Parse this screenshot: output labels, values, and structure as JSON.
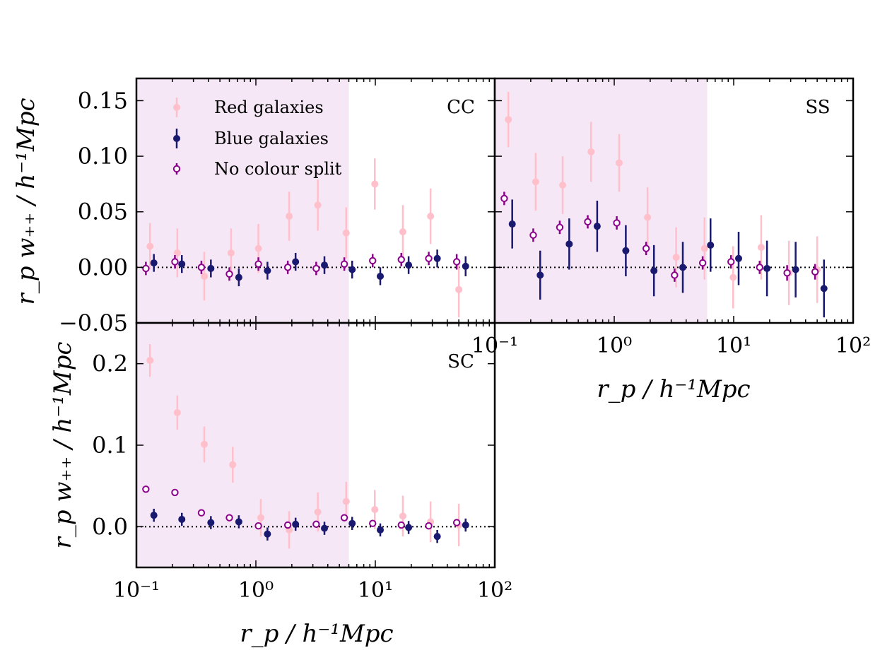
{
  "legend": {
    "red_label": "Red galaxies",
    "blue_label": "Blue galaxies",
    "all_label": "No colour split"
  },
  "axes": {
    "x_tick_labels": [
      "10⁻¹",
      "10⁰",
      "10¹",
      "10²"
    ],
    "x_tick_values": [
      0.1,
      1,
      10,
      100
    ],
    "xlabel": "r_p / h⁻¹Mpc",
    "ylabel": "r_p w₊₊ / h⁻¹Mpc"
  },
  "colors": {
    "red": "#ffc0cb",
    "blue": "#191970",
    "all": "#8b008b",
    "shade": "#f6e7f6"
  },
  "chart_data": [
    {
      "type": "scatter",
      "panel": "CC",
      "title": "CC",
      "xscale": "log",
      "xlim": [
        0.1,
        100
      ],
      "ylim": [
        -0.05,
        0.17
      ],
      "yticks": [
        -0.05,
        0.0,
        0.05,
        0.1,
        0.15
      ],
      "ytick_labels": [
        "−0.05",
        "0.00",
        "0.05",
        "0.10",
        "0.15"
      ],
      "shaded_region": [
        0.1,
        6
      ],
      "reference_line": 0,
      "series": [
        {
          "name": "Red galaxies",
          "color": "#ffc0cb",
          "marker": "filled",
          "x": [
            0.13,
            0.22,
            0.37,
            0.62,
            1.05,
            1.9,
            3.3,
            5.7,
            9.9,
            17,
            29,
            50
          ],
          "y": [
            0.019,
            0.013,
            -0.008,
            0.013,
            0.017,
            0.046,
            0.056,
            0.031,
            0.075,
            0.032,
            0.046,
            -0.02
          ],
          "err": [
            0.021,
            0.022,
            0.022,
            0.022,
            0.022,
            0.022,
            0.023,
            0.023,
            0.023,
            0.024,
            0.025,
            0.025
          ]
        },
        {
          "name": "Blue galaxies",
          "color": "#191970",
          "marker": "filled",
          "x": [
            0.14,
            0.24,
            0.42,
            0.72,
            1.25,
            2.15,
            3.75,
            6.4,
            11,
            19,
            33,
            57
          ],
          "y": [
            0.004,
            0.003,
            -0.001,
            -0.009,
            -0.003,
            0.005,
            0.002,
            -0.002,
            -0.008,
            0.002,
            0.008,
            0.001
          ],
          "err": [
            0.008,
            0.008,
            0.008,
            0.008,
            0.008,
            0.008,
            0.008,
            0.008,
            0.008,
            0.008,
            0.008,
            0.009
          ]
        },
        {
          "name": "No colour split",
          "color": "#8b008b",
          "marker": "open",
          "x": [
            0.12,
            0.21,
            0.35,
            0.6,
            1.05,
            1.85,
            3.2,
            5.5,
            9.5,
            16.5,
            28,
            48
          ],
          "y": [
            -0.001,
            0.005,
            0.0,
            -0.006,
            0.003,
            0.0,
            -0.001,
            0.003,
            0.006,
            0.007,
            0.008,
            0.005
          ],
          "err": [
            0.006,
            0.006,
            0.006,
            0.006,
            0.006,
            0.006,
            0.006,
            0.006,
            0.006,
            0.006,
            0.006,
            0.007
          ]
        }
      ]
    },
    {
      "type": "scatter",
      "panel": "SS",
      "title": "SS",
      "xscale": "log",
      "xlim": [
        0.1,
        100
      ],
      "ylim": [
        -0.05,
        0.17
      ],
      "yticks": [
        -0.05,
        0.0,
        0.05,
        0.1,
        0.15
      ],
      "ytick_labels": [],
      "shaded_region": [
        0.1,
        6
      ],
      "reference_line": 0,
      "series": [
        {
          "name": "Red galaxies",
          "color": "#ffc0cb",
          "marker": "filled",
          "x": [
            0.13,
            0.22,
            0.37,
            0.64,
            1.1,
            1.9,
            3.3,
            5.7,
            9.9,
            17,
            29,
            50
          ],
          "y": [
            0.133,
            0.077,
            0.074,
            0.104,
            0.094,
            0.045,
            0.009,
            0.017,
            -0.009,
            0.018,
            -0.005,
            -0.002
          ],
          "err": [
            0.025,
            0.026,
            0.026,
            0.027,
            0.026,
            0.027,
            0.027,
            0.028,
            0.028,
            0.029,
            0.029,
            0.03
          ]
        },
        {
          "name": "Blue galaxies",
          "color": "#191970",
          "marker": "filled",
          "x": [
            0.14,
            0.24,
            0.42,
            0.72,
            1.25,
            2.15,
            3.75,
            6.4,
            11,
            19,
            33,
            57
          ],
          "y": [
            0.039,
            -0.007,
            0.021,
            0.037,
            0.015,
            -0.003,
            0.0,
            0.02,
            0.008,
            -0.001,
            -0.002,
            -0.019
          ],
          "err": [
            0.022,
            0.022,
            0.023,
            0.023,
            0.023,
            0.023,
            0.023,
            0.024,
            0.024,
            0.025,
            0.025,
            0.026
          ]
        },
        {
          "name": "No colour split",
          "color": "#8b008b",
          "marker": "open",
          "x": [
            0.12,
            0.21,
            0.35,
            0.6,
            1.05,
            1.85,
            3.2,
            5.5,
            9.5,
            16.5,
            28,
            48
          ],
          "y": [
            0.062,
            0.029,
            0.036,
            0.041,
            0.04,
            0.017,
            -0.007,
            0.004,
            0.005,
            0.0,
            -0.005,
            -0.004
          ],
          "err": [
            0.006,
            0.006,
            0.006,
            0.006,
            0.006,
            0.006,
            0.006,
            0.006,
            0.006,
            0.006,
            0.007,
            0.007
          ]
        }
      ]
    },
    {
      "type": "scatter",
      "panel": "SC",
      "title": "SC",
      "xscale": "log",
      "xlim": [
        0.1,
        100
      ],
      "ylim": [
        -0.05,
        0.25
      ],
      "yticks": [
        0.0,
        0.1,
        0.2
      ],
      "ytick_labels": [
        "0.0",
        "0.1",
        "0.2"
      ],
      "shaded_region": [
        0.1,
        6
      ],
      "reference_line": 0,
      "series": [
        {
          "name": "Red galaxies",
          "color": "#ffc0cb",
          "marker": "filled",
          "x": [
            0.13,
            0.22,
            0.37,
            0.64,
            1.1,
            1.9,
            3.3,
            5.7,
            9.9,
            17,
            29,
            50
          ],
          "y": [
            0.204,
            0.14,
            0.101,
            0.076,
            0.011,
            -0.004,
            0.018,
            0.031,
            0.021,
            0.013,
            0.006,
            0.002
          ],
          "err": [
            0.02,
            0.021,
            0.022,
            0.022,
            0.023,
            0.023,
            0.024,
            0.024,
            0.024,
            0.025,
            0.025,
            0.026
          ]
        },
        {
          "name": "Blue galaxies",
          "color": "#191970",
          "marker": "filled",
          "x": [
            0.14,
            0.24,
            0.42,
            0.72,
            1.25,
            2.15,
            3.75,
            6.4,
            11,
            19,
            33,
            57
          ],
          "y": [
            0.014,
            0.009,
            0.005,
            0.006,
            -0.009,
            0.003,
            -0.002,
            0.004,
            -0.004,
            -0.001,
            -0.012,
            0.002
          ],
          "err": [
            0.008,
            0.008,
            0.008,
            0.008,
            0.008,
            0.008,
            0.008,
            0.008,
            0.008,
            0.008,
            0.008,
            0.008
          ]
        },
        {
          "name": "No colour split",
          "color": "#8b008b",
          "marker": "open",
          "x": [
            0.12,
            0.21,
            0.35,
            0.6,
            1.05,
            1.85,
            3.2,
            5.5,
            9.5,
            16.5,
            28,
            48
          ],
          "y": [
            0.046,
            0.042,
            0.017,
            0.011,
            0.001,
            0.002,
            0.003,
            0.011,
            0.004,
            0.002,
            0.001,
            0.005
          ],
          "err": [
            0.004,
            0.004,
            0.004,
            0.004,
            0.004,
            0.004,
            0.004,
            0.004,
            0.004,
            0.004,
            0.004,
            0.004
          ]
        }
      ]
    }
  ]
}
